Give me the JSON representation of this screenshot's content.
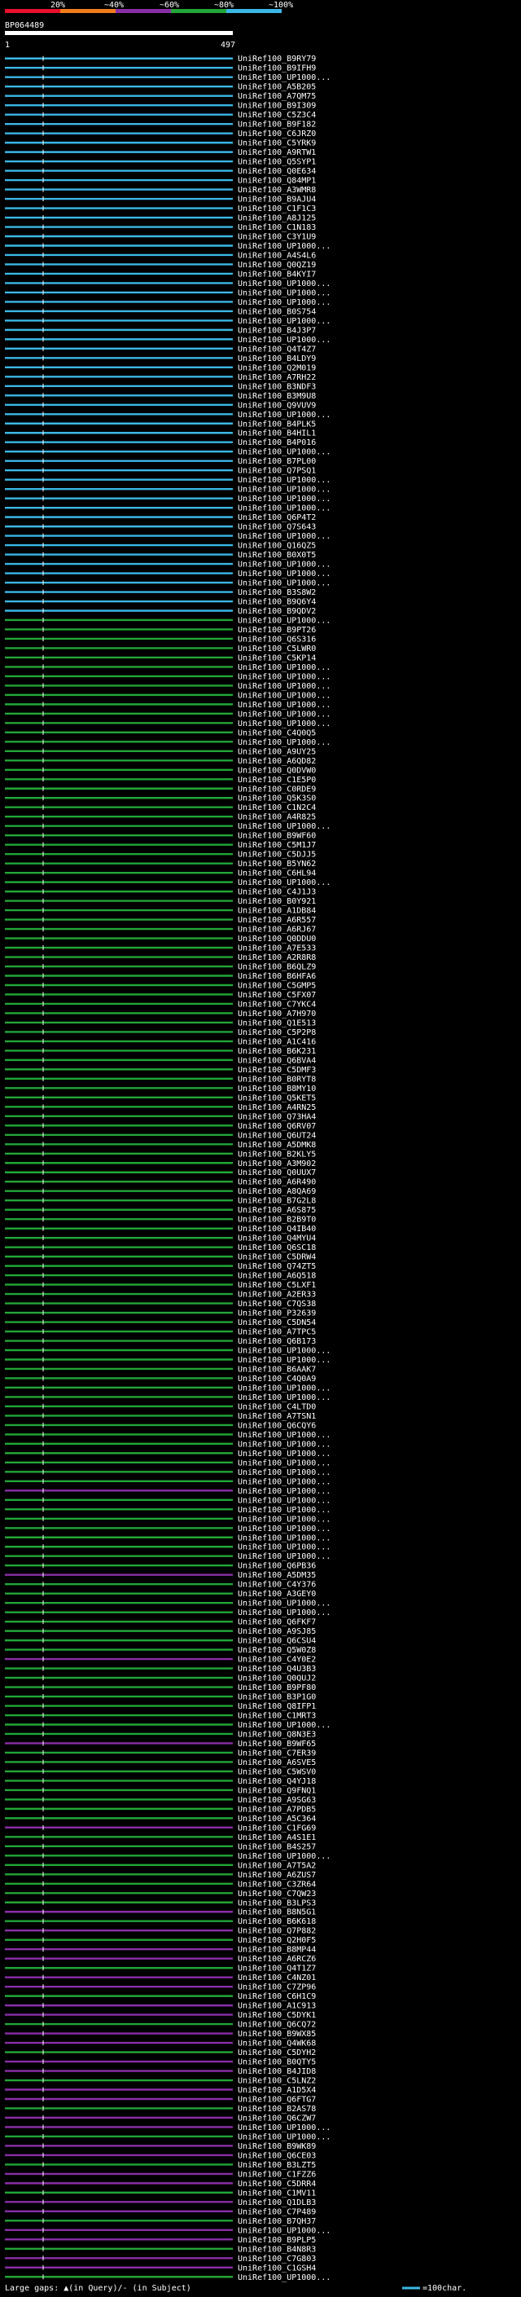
{
  "chart_data": {
    "type": "alignment-overview",
    "identity_scale": [
      "20%",
      "~40%",
      "~60%",
      "~80%",
      "~100%"
    ],
    "identity_colors": [
      "#e8102a",
      "#f07d1a",
      "#8a2ea8",
      "#22a637",
      "#3bb8e6"
    ],
    "query_name": "BP064489",
    "axis_start": "1",
    "axis_end": "497",
    "query_length": 497,
    "hits": [
      "UniRef100_B9RY79",
      "UniRef100_B9IFH9",
      "UniRef100_UP1000...",
      "UniRef100_A5B205",
      "UniRef100_A7QM75",
      "UniRef100_B9I309",
      "UniRef100_C5Z3C4",
      "UniRef100_B9F182",
      "UniRef100_C6JRZ0",
      "UniRef100_C5YRK9",
      "UniRef100_A9RTW1",
      "UniRef100_Q5SYP1",
      "UniRef100_Q0E634",
      "UniRef100_Q84MP1",
      "UniRef100_A3WMR8",
      "UniRef100_B9AJU4",
      "UniRef100_C1F1C3",
      "UniRef100_A8J125",
      "UniRef100_C1N183",
      "UniRef100_C3Y1U9",
      "UniRef100_UP1000...",
      "UniRef100_A4S4L6",
      "UniRef100_Q0QZ19",
      "UniRef100_B4KYI7",
      "UniRef100_UP1000...",
      "UniRef100_UP1000...",
      "UniRef100_UP1000...",
      "UniRef100_B0S754",
      "UniRef100_UP1000...",
      "UniRef100_B4J3P7",
      "UniRef100_UP1000...",
      "UniRef100_Q4T4Z7",
      "UniRef100_B4LDY9",
      "UniRef100_Q2M019",
      "UniRef100_A7RH22",
      "UniRef100_B3NDF3",
      "UniRef100_B3M9U8",
      "UniRef100_Q9VUV9",
      "UniRef100_UP1000...",
      "UniRef100_B4PLK5",
      "UniRef100_B4HIL1",
      "UniRef100_B4P016",
      "UniRef100_UP1000...",
      "UniRef100_B7PL00",
      "UniRef100_Q7PSQ1",
      "UniRef100_UP1000...",
      "UniRef100_UP1000...",
      "UniRef100_UP1000...",
      "UniRef100_UP1000...",
      "UniRef100_Q6P4T2",
      "UniRef100_Q7S643",
      "UniRef100_UP1000...",
      "UniRef100_Q16QZ5",
      "UniRef100_B0X0T5",
      "UniRef100_UP1000...",
      "UniRef100_UP1000...",
      "UniRef100_UP1000...",
      "UniRef100_B3S8W2",
      "UniRef100_B9Q6Y4",
      "UniRef100_B9QDV2",
      "UniRef100_UP1000...",
      "UniRef100_B9PT26",
      "UniRef100_Q6S316",
      "UniRef100_C5LWR0",
      "UniRef100_C5KP14",
      "UniRef100_UP1000...",
      "UniRef100_UP1000...",
      "UniRef100_UP1000...",
      "UniRef100_UP1000...",
      "UniRef100_UP1000...",
      "UniRef100_UP1000...",
      "UniRef100_UP1000...",
      "UniRef100_C4Q0Q5",
      "UniRef100_UP1000...",
      "UniRef100_A9UY25",
      "UniRef100_A6QD82",
      "UniRef100_Q0DVW0",
      "UniRef100_C1E5P0",
      "UniRef100_C0RDE9",
      "UniRef100_Q5K3S0",
      "UniRef100_C1N2C4",
      "UniRef100_A4R825",
      "UniRef100_UP1000...",
      "UniRef100_B9WF60",
      "UniRef100_C5M1J7",
      "UniRef100_C5DJJ5",
      "UniRef100_B5YN62",
      "UniRef100_C6HL94",
      "UniRef100_UP1000...",
      "UniRef100_C4J1J3",
      "UniRef100_B0Y921",
      "UniRef100_A1DB84",
      "UniRef100_A6R557",
      "UniRef100_A6RJ67",
      "UniRef100_Q0DDU0",
      "UniRef100_A7E533",
      "UniRef100_A2R8R8",
      "UniRef100_B6QLZ9",
      "UniRef100_B6HFA6",
      "UniRef100_C5GMP5",
      "UniRef100_C5FX07",
      "UniRef100_C7YKC4",
      "UniRef100_A7H970",
      "UniRef100_Q1E513",
      "UniRef100_C5P2P8",
      "UniRef100_A1C416",
      "UniRef100_B6K231",
      "UniRef100_Q6BVA4",
      "UniRef100_C5DMF3",
      "UniRef100_B0RYT8",
      "UniRef100_B8MY10",
      "UniRef100_Q5KET5",
      "UniRef100_A4RN25",
      "UniRef100_Q73HA4",
      "UniRef100_Q6RV07",
      "UniRef100_Q6UT24",
      "UniRef100_A5DMK8",
      "UniRef100_B2KLY5",
      "UniRef100_A3M902",
      "UniRef100_Q0UUX7",
      "UniRef100_A6R490",
      "UniRef100_A8QA69",
      "UniRef100_B7G2L8",
      "UniRef100_A6S875",
      "UniRef100_B2B9T0",
      "UniRef100_Q4IB40",
      "UniRef100_Q4MYU4",
      "UniRef100_Q6SC18",
      "UniRef100_C5DRW4",
      "UniRef100_Q74ZT5",
      "UniRef100_A6Q518",
      "UniRef100_C5LXF1",
      "UniRef100_A2ER33",
      "UniRef100_C7QS38",
      "UniRef100_P32639",
      "UniRef100_C5DN54",
      "UniRef100_A7TPC5",
      "UniRef100_Q6B173",
      "UniRef100_UP1000...",
      "UniRef100_UP1000...",
      "UniRef100_B6AAK7",
      "UniRef100_C4Q0A9",
      "UniRef100_UP1000...",
      "UniRef100_UP1000...",
      "UniRef100_C4LTD0",
      "UniRef100_A7TSN1",
      "UniRef100_Q6CQY6",
      "UniRef100_UP1000...",
      "UniRef100_UP1000...",
      "UniRef100_UP1000...",
      "UniRef100_UP1000...",
      "UniRef100_UP1000...",
      "UniRef100_UP1000...",
      "UniRef100_UP1000...",
      "UniRef100_UP1000...",
      "UniRef100_UP1000...",
      "UniRef100_UP1000...",
      "UniRef100_UP1000...",
      "UniRef100_UP1000...",
      "UniRef100_UP1000...",
      "UniRef100_UP1000...",
      "UniRef100_Q6PB36",
      "UniRef100_A5DM35",
      "UniRef100_C4Y376",
      "UniRef100_A3GEY0",
      "UniRef100_UP1000...",
      "UniRef100_UP1000...",
      "UniRef100_Q6FKF7",
      "UniRef100_A9SJ85",
      "UniRef100_Q6CSU4",
      "UniRef100_Q5W0Z8",
      "UniRef100_C4Y0E2",
      "UniRef100_Q4U3B3",
      "UniRef100_Q0QUJ2",
      "UniRef100_B9PF80",
      "UniRef100_B3P1G0",
      "UniRef100_Q8IFP1",
      "UniRef100_C1MRT3",
      "UniRef100_UP1000...",
      "UniRef100_Q8N3E3",
      "UniRef100_B9WF65",
      "UniRef100_C7ER39",
      "UniRef100_A6SVE5",
      "UniRef100_C5WSV0",
      "UniRef100_Q4YJ18",
      "UniRef100_Q9FNQ1",
      "UniRef100_A9SG63",
      "UniRef100_A7PDB5",
      "UniRef100_A5C364",
      "UniRef100_C1FG69",
      "UniRef100_A4S1E1",
      "UniRef100_B4S257",
      "UniRef100_UP1000...",
      "UniRef100_A7T5A2",
      "UniRef100_A6ZUS7",
      "UniRef100_C3ZR64",
      "UniRef100_C7QW23",
      "UniRef100_B3LPS3",
      "UniRef100_B8N5G1",
      "UniRef100_B6K618",
      "UniRef100_Q7P882",
      "UniRef100_Q2H0F5",
      "UniRef100_B8MP44",
      "UniRef100_A6RCZ6",
      "UniRef100_Q4T1Z7",
      "UniRef100_C4NZ01",
      "UniRef100_C7ZP96",
      "UniRef100_C6H1C9",
      "UniRef100_A1C913",
      "UniRef100_C5DYK1",
      "UniRef100_Q6CQ72",
      "UniRef100_B9WX85",
      "UniRef100_Q4WK68",
      "UniRef100_C5DYH2",
      "UniRef100_B0QTY5",
      "UniRef100_B4JID8",
      "UniRef100_C5LNZ2",
      "UniRef100_A1D5X4",
      "UniRef100_Q6FTG7",
      "UniRef100_B2AS78",
      "UniRef100_Q6CZW7",
      "UniRef100_UP1000...",
      "UniRef100_UP1000...",
      "UniRef100_B9WK89",
      "UniRef100_Q6CE03",
      "UniRef100_B3LZT5",
      "UniRef100_C1FZZ6",
      "UniRef100_C5DRR4",
      "UniRef100_C1MV11",
      "UniRef100_Q1DLB3",
      "UniRef100_C7P489",
      "UniRef100_B7QH37",
      "UniRef100_UP1000...",
      "UniRef100_B9PLP5",
      "UniRef100_B4N8R3",
      "UniRef100_C7G803",
      "UniRef100_C1GSH4",
      "UniRef100_UP1000..."
    ],
    "legend_text": "Large gaps: ▲(in Query)/- (in Subject)",
    "legend_scale": "=100char."
  }
}
